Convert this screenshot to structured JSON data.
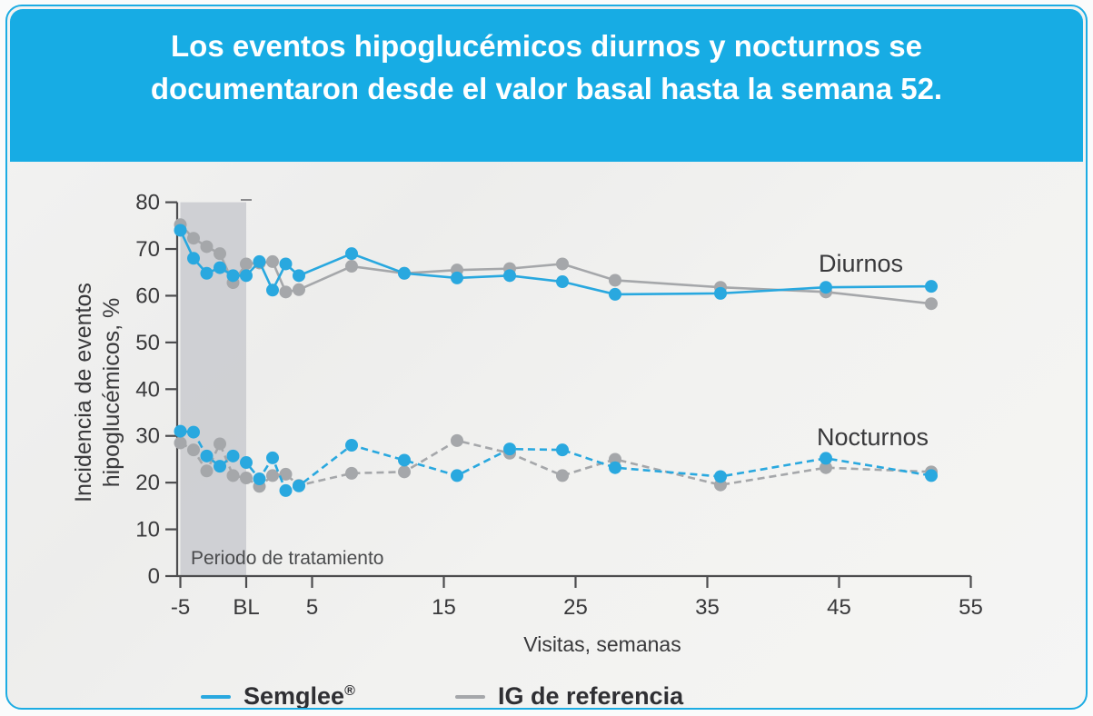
{
  "slide": {
    "title": "Los eventos hipoglucémicos diurnos y nocturnos se documentaron desde el valor basal hasta la semana 52.",
    "accent_color": "#17ace4"
  },
  "chart_data": {
    "type": "line",
    "xlabel": "Visitas, semanas",
    "ylabel": "Incidencia de eventos hipoglucémicos, %",
    "ylabel_lines": [
      "Incidencia de eventos",
      "hipoglucémicos, %"
    ],
    "ylim": [
      0,
      80
    ],
    "y_ticks": [
      0,
      10,
      20,
      30,
      40,
      50,
      60,
      70,
      80
    ],
    "x_ticks": [
      {
        "week": -5,
        "label": "-5"
      },
      {
        "week": 0,
        "label": "BL"
      },
      {
        "week": 5,
        "label": "5"
      },
      {
        "week": 15,
        "label": "15"
      },
      {
        "week": 25,
        "label": "25"
      },
      {
        "week": 35,
        "label": "35"
      },
      {
        "week": 45,
        "label": "45"
      },
      {
        "week": 55,
        "label": "55"
      }
    ],
    "x": [
      -5,
      -4,
      -3,
      -2,
      -1,
      0,
      1,
      2,
      3,
      4,
      8,
      12,
      16,
      20,
      24,
      28,
      36,
      44,
      52
    ],
    "series": [
      {
        "name": "Diurnos — IG de referencia",
        "group": "Diurnos",
        "treatment": "IG de referencia",
        "color": "#a5a7aa",
        "style": "solid",
        "values": [
          75.2,
          72.3,
          70.5,
          69,
          62.8,
          66.8,
          67,
          67.3,
          60.8,
          61.3,
          66.3,
          64.8,
          65.5,
          65.8,
          66.8,
          63.3,
          61.8,
          60.8,
          58.3
        ]
      },
      {
        "name": "Nocturnos — IG de referencia",
        "group": "Nocturnos",
        "treatment": "IG de referencia",
        "color": "#a5a7aa",
        "style": "dashed",
        "values": [
          28.5,
          27,
          22.5,
          28.3,
          21.5,
          21,
          19.2,
          21.5,
          21.8,
          19.4,
          22,
          22.3,
          29,
          26.3,
          21.5,
          25,
          19.5,
          23.2,
          22.3
        ]
      },
      {
        "name": "Diurnos — Semglee®",
        "group": "Diurnos",
        "treatment": "Semglee®",
        "color": "#29a8df",
        "style": "solid",
        "values": [
          74,
          68,
          64.8,
          66,
          64.3,
          64.3,
          67.3,
          61.2,
          66.8,
          64.3,
          69,
          64.8,
          63.8,
          64.3,
          63,
          60.3,
          60.5,
          61.8,
          62
        ]
      },
      {
        "name": "Nocturnos — Semglee®",
        "group": "Nocturnos",
        "treatment": "Semglee®",
        "color": "#29a8df",
        "style": "dashed",
        "values": [
          31,
          30.8,
          25.7,
          23.5,
          25.7,
          24.3,
          20.8,
          25.3,
          18.3,
          19.3,
          28,
          24.8,
          21.5,
          27.2,
          27,
          23.2,
          21.3,
          25.2,
          21.5
        ]
      }
    ],
    "shaded_region": {
      "from_week": -5,
      "to_week": 0,
      "label": "Periodo de tratamiento",
      "color": "#cbccd0"
    },
    "series_labels": {
      "diurnos": "Diurnos",
      "nocturnos": "Nocturnos"
    },
    "legend": [
      {
        "label": "Semglee",
        "sup": "®",
        "color": "#29a8df"
      },
      {
        "label": "IG de referencia",
        "sup": "",
        "color": "#a5a7aa"
      }
    ],
    "legend_position": "bottom",
    "grid": false,
    "axis_color": "#4c4c4e",
    "tick_label_color": "#39393b"
  }
}
